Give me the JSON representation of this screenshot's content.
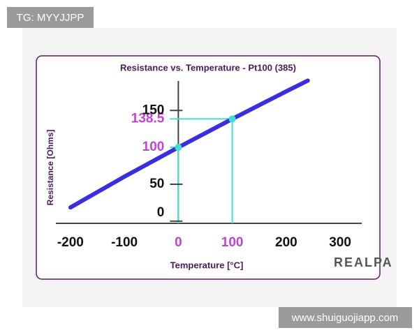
{
  "watermark_top": "TG: MYYJJPP",
  "watermark_bottom": "www.shuiguojiapp.com",
  "logo": "REALPA",
  "chart_data": {
    "type": "line",
    "title": "Resistance  vs. Temperature - Pt100 (385)",
    "x_label": "Temperature [°C]",
    "y_label": "Resistance [Ohms]",
    "series": [
      {
        "name": "Pt100",
        "color": "#3a2fe0",
        "x": [
          -200,
          -100,
          0,
          100,
          200,
          240
        ],
        "values": [
          18.52,
          60.26,
          100,
          138.51,
          175.86,
          190.47
        ]
      }
    ],
    "xlim": [
      -227,
      340
    ],
    "xticks": [
      -200,
      -100,
      0,
      100,
      200,
      300
    ],
    "ylim": [
      -3,
      190
    ],
    "yticks": [
      0,
      50,
      100,
      138.5,
      150
    ],
    "markers": [
      {
        "x": 0,
        "y": 100
      },
      {
        "x": 100,
        "y": 138.5
      }
    ],
    "marker_color": "#3fe0d0",
    "highlight_color": "#c63fd8"
  }
}
